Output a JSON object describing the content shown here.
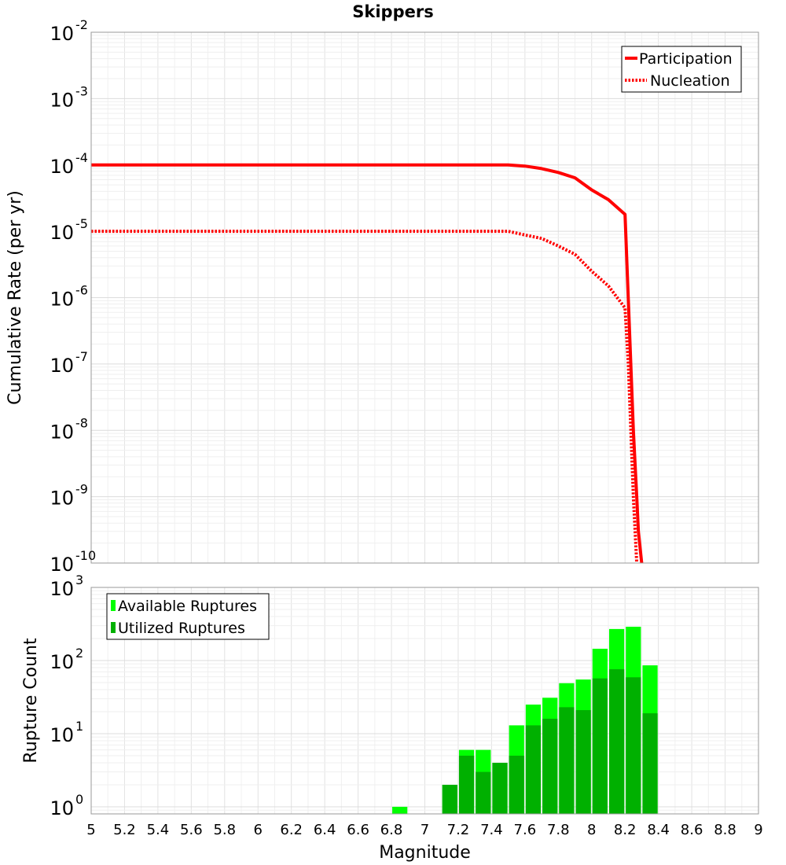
{
  "chart_data": [
    {
      "type": "line",
      "title": "Skippers",
      "xlabel": "",
      "ylabel": "Cumulative Rate (per yr)",
      "xlim": [
        5,
        9
      ],
      "ylim": [
        1e-10,
        0.01
      ],
      "yscale": "log",
      "y_ticks": [
        {
          "base": "10",
          "exp": "-10",
          "value": 1e-10
        },
        {
          "base": "10",
          "exp": "-9",
          "value": 1e-09
        },
        {
          "base": "10",
          "exp": "-8",
          "value": 1e-08
        },
        {
          "base": "10",
          "exp": "-7",
          "value": 1e-07
        },
        {
          "base": "10",
          "exp": "-6",
          "value": 1e-06
        },
        {
          "base": "10",
          "exp": "-5",
          "value": 1e-05
        },
        {
          "base": "10",
          "exp": "-4",
          "value": 0.0001
        },
        {
          "base": "10",
          "exp": "-3",
          "value": 0.001
        },
        {
          "base": "10",
          "exp": "-2",
          "value": 0.01
        }
      ],
      "grid": true,
      "legend_position": "top-right",
      "series": [
        {
          "name": "Participation",
          "style": "solid",
          "color": "#ff0000",
          "x": [
            5.0,
            7.5,
            7.6,
            7.7,
            7.8,
            7.9,
            8.0,
            8.1,
            8.2,
            8.25,
            8.27,
            8.28,
            8.3
          ],
          "y": [
            0.0001,
            0.0001,
            9.6e-05,
            8.8e-05,
            7.7e-05,
            6.4e-05,
            4.2e-05,
            3e-05,
            1.8e-05,
            1e-08,
            1e-09,
            3e-10,
            1e-10
          ]
        },
        {
          "name": "Nucleation",
          "style": "dotted",
          "color": "#ff0000",
          "x": [
            5.0,
            7.5,
            7.6,
            7.7,
            7.8,
            7.9,
            8.0,
            8.1,
            8.2,
            8.22,
            8.25,
            8.27
          ],
          "y": [
            1e-05,
            1e-05,
            8.8e-06,
            7.8e-06,
            6e-06,
            4.5e-06,
            2.5e-06,
            1.5e-06,
            7e-07,
            1e-07,
            1e-09,
            1e-10
          ]
        }
      ]
    },
    {
      "type": "bar",
      "title": "",
      "xlabel": "Magnitude",
      "ylabel": "Rupture Count",
      "xlim": [
        5,
        9
      ],
      "ylim": [
        0.8,
        1000
      ],
      "yscale": "log",
      "x_ticks": [
        "5",
        "5.2",
        "5.4",
        "5.6",
        "5.8",
        "6",
        "6.2",
        "6.4",
        "6.6",
        "6.8",
        "7",
        "7.2",
        "7.4",
        "7.6",
        "7.8",
        "8",
        "8.2",
        "8.4",
        "8.6",
        "8.8",
        "9"
      ],
      "y_ticks": [
        {
          "base": "10",
          "exp": "0",
          "value": 1
        },
        {
          "base": "10",
          "exp": "1",
          "value": 10
        },
        {
          "base": "10",
          "exp": "2",
          "value": 100
        },
        {
          "base": "10",
          "exp": "3",
          "value": 1000
        }
      ],
      "grid": true,
      "legend_position": "top-left",
      "bin_width": 0.1,
      "bin_centers": [
        6.85,
        7.15,
        7.25,
        7.35,
        7.45,
        7.55,
        7.65,
        7.75,
        7.85,
        7.95,
        8.05,
        8.15,
        8.25,
        8.35
      ],
      "series": [
        {
          "name": "Available Ruptures",
          "color": "#00ff00",
          "values": [
            1,
            2,
            6,
            6,
            4,
            13,
            25,
            31,
            49,
            55,
            145,
            270,
            290,
            86
          ]
        },
        {
          "name": "Utilized Ruptures",
          "color": "#00b000",
          "values": [
            0,
            2,
            5,
            3,
            4,
            5,
            13,
            16,
            23,
            21,
            57,
            76,
            59,
            19
          ]
        }
      ]
    }
  ]
}
